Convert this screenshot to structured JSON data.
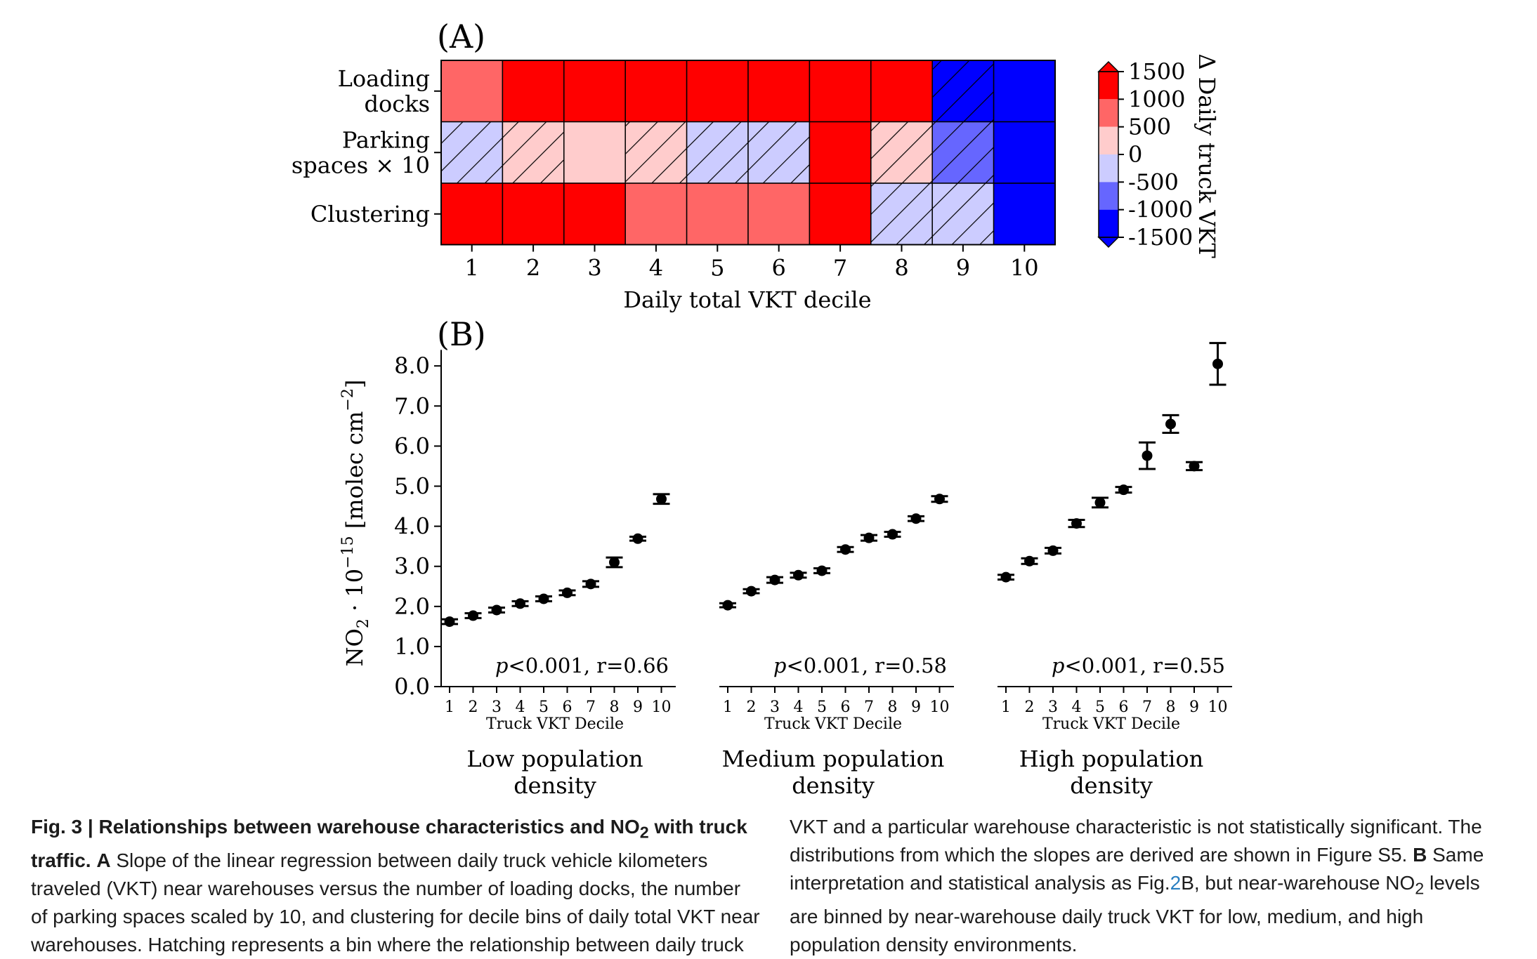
{
  "panel_a": {
    "label": "(A)",
    "row_labels": [
      [
        "Loading",
        "docks"
      ],
      [
        "Parking",
        "spaces × 10"
      ],
      [
        "Clustering"
      ]
    ],
    "colorbar_ticks": [
      "1500",
      "1000",
      "500",
      "0",
      "-500",
      "-1000",
      "-1500"
    ],
    "colorbar_label": "Δ Daily truck VKT",
    "x_label": "Daily total VKT decile"
  },
  "panel_b": {
    "label": "(B)",
    "y_label_parts": [
      "NO",
      "2",
      " · 10",
      "−15",
      " [molec cm",
      "−2",
      "]"
    ],
    "x_label": "Truck VKT  Decile"
  },
  "caption": {
    "fig_label": "Fig. 3 | Relationships between warehouse characteristics and NO",
    "fig_label_sub": "2",
    "fig_label_end": " with truck traffic.",
    "a_label": "A",
    "left_text": "Slope of the linear regression between daily truck vehicle kilometers traveled (VKT) near warehouses versus the number of loading docks, the number of parking spaces scaled by 10, and clustering for decile bins of daily total VKT near warehouses. Hatching represents a bin where the relationship between daily truck",
    "right_text_1": "VKT and a particular warehouse characteristic is not statistically significant. The distributions from which the slopes are derived are shown in Figure S5.",
    "b_label": "B",
    "right_text_2": "Same interpretation and statistical analysis as Fig.",
    "fig_ref": "2",
    "right_text_3": "B, but near-warehouse NO",
    "right_text_sub": "2",
    "right_text_4": " levels are binned by near-warehouse daily truck VKT for low, medium, and high population density environments."
  },
  "chart_data": [
    {
      "type": "heatmap",
      "title": "(A)",
      "rows": [
        "Loading docks",
        "Parking spaces × 10",
        "Clustering"
      ],
      "columns": [
        "1",
        "2",
        "3",
        "4",
        "5",
        "6",
        "7",
        "8",
        "9",
        "10"
      ],
      "xlabel": "Daily total VKT decile",
      "colorbar_label": "Δ Daily truck VKT",
      "colorbar_range": [
        -1500,
        1500
      ],
      "colorbar_levels": [
        -1500,
        -1000,
        -500,
        0,
        500,
        1000,
        1500
      ],
      "values": [
        [
          750,
          1250,
          1250,
          1250,
          1250,
          1250,
          1250,
          1250,
          -1250,
          -1500
        ],
        [
          -250,
          250,
          250,
          250,
          -250,
          -250,
          1250,
          250,
          -750,
          -1500
        ],
        [
          1250,
          1250,
          1250,
          750,
          750,
          750,
          1250,
          -250,
          -250,
          -1500
        ]
      ],
      "hatched_not_significant": [
        [
          false,
          false,
          false,
          false,
          false,
          false,
          false,
          false,
          true,
          false
        ],
        [
          true,
          true,
          false,
          true,
          true,
          true,
          false,
          true,
          true,
          false
        ],
        [
          false,
          false,
          false,
          false,
          false,
          false,
          false,
          true,
          true,
          false
        ]
      ],
      "colors": {
        "pos3": "#ff0000",
        "pos2": "#ff6666",
        "pos1": "#ffcccc",
        "neg1": "#ccccff",
        "neg2": "#6666ff",
        "neg3": "#0000ff"
      }
    },
    {
      "type": "scatter",
      "title": "(B)",
      "ylabel": "NO2 · 10^-15 [molec cm^-2]",
      "ylim": [
        0,
        8.4
      ],
      "yticks": [
        "0.0",
        "1.0",
        "2.0",
        "3.0",
        "4.0",
        "5.0",
        "6.0",
        "7.0",
        "8.0"
      ],
      "x": [
        1,
        2,
        3,
        4,
        5,
        6,
        7,
        8,
        9,
        10
      ],
      "xlabel": "Truck VKT  Decile",
      "error_bars": true,
      "series": [
        {
          "name": "Low population density",
          "annotation": {
            "p": "p",
            "rest": "<0.001, r=0.66"
          },
          "values": [
            1.62,
            1.77,
            1.91,
            2.07,
            2.19,
            2.34,
            2.56,
            3.1,
            3.69,
            4.68
          ],
          "errors": [
            0.06,
            0.06,
            0.06,
            0.06,
            0.06,
            0.06,
            0.07,
            0.12,
            0.05,
            0.12
          ]
        },
        {
          "name": "Medium population density",
          "annotation": {
            "p": "p",
            "rest": "<0.001, r=0.58"
          },
          "values": [
            2.03,
            2.38,
            2.66,
            2.78,
            2.89,
            3.42,
            3.71,
            3.8,
            4.19,
            4.68
          ],
          "errors": [
            0.05,
            0.05,
            0.07,
            0.06,
            0.06,
            0.06,
            0.07,
            0.06,
            0.06,
            0.07
          ]
        },
        {
          "name": "High population density",
          "annotation": {
            "p": "p",
            "rest": "<0.001, r=0.55"
          },
          "values": [
            2.73,
            3.13,
            3.39,
            4.07,
            4.59,
            4.91,
            5.76,
            6.55,
            5.5,
            8.05
          ],
          "errors": [
            0.06,
            0.07,
            0.07,
            0.09,
            0.12,
            0.07,
            0.33,
            0.22,
            0.1,
            0.52
          ]
        }
      ]
    }
  ]
}
